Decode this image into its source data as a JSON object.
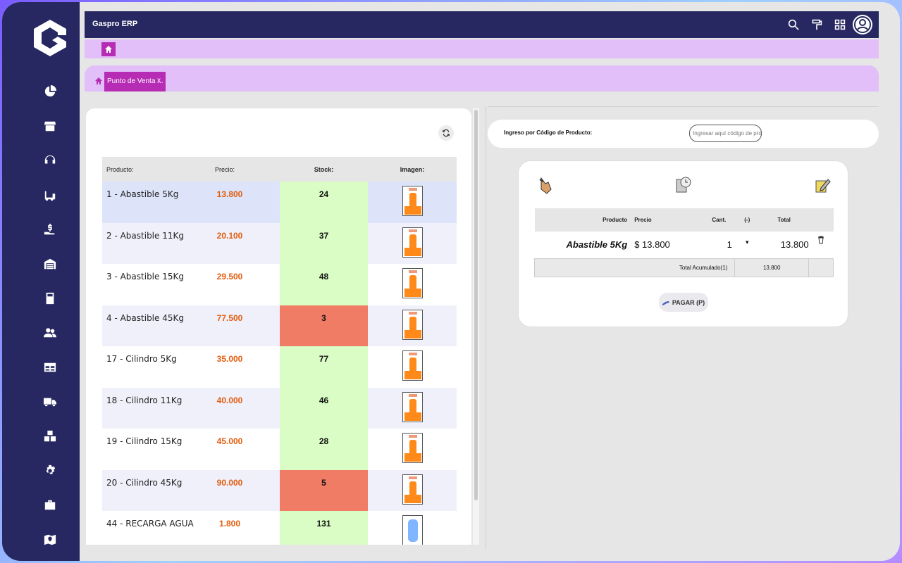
{
  "app": {
    "title": "Gaspro ERP",
    "colors": {
      "navy": "#272861",
      "magenta": "#b62cb4",
      "lilac": "#e2bff8",
      "price": "#e25d0f",
      "stock_ok": "#d9fdc4",
      "stock_low": "#f07c66"
    }
  },
  "sidebar": {
    "icons": [
      "pie-chart-icon",
      "store-icon",
      "headset-icon",
      "forklift-icon",
      "hand-money-icon",
      "warehouse-icon",
      "calculator-icon",
      "users-icon",
      "table-icon",
      "truck-icon",
      "boxes-icon",
      "gear-icon",
      "briefcase-icon",
      "map-icon"
    ]
  },
  "topbar": {
    "icons": [
      "search-icon",
      "paint-roller-icon",
      "grid-icon",
      "user-avatar-icon"
    ]
  },
  "tabs": [
    {
      "label": "Punto de Venta ...",
      "close": "x"
    }
  ],
  "products": {
    "headers": {
      "product": "Producto:",
      "price": "Precio:",
      "stock": "Stock:",
      "image": "Imagen:"
    },
    "rows": [
      {
        "name": "1 - Abastible 5Kg",
        "price": "13.800",
        "stock": "24",
        "status": "ok",
        "image": "gas-cylinder"
      },
      {
        "name": "2 - Abastible 11Kg",
        "price": "20.100",
        "stock": "37",
        "status": "ok",
        "image": "gas-cylinder"
      },
      {
        "name": "3 - Abastible 15Kg",
        "price": "29.500",
        "stock": "48",
        "status": "ok",
        "image": "gas-cylinder"
      },
      {
        "name": "4 - Abastible 45Kg",
        "price": "77.500",
        "stock": "3",
        "status": "low",
        "image": "gas-cylinder"
      },
      {
        "name": "17 - Cilindro 5Kg",
        "price": "35.000",
        "stock": "77",
        "status": "ok",
        "image": "gas-cylinder"
      },
      {
        "name": "18 - Cilindro 11Kg",
        "price": "40.000",
        "stock": "46",
        "status": "ok",
        "image": "gas-cylinder"
      },
      {
        "name": "19 - Cilindro 15Kg",
        "price": "45.000",
        "stock": "28",
        "status": "ok",
        "image": "gas-cylinder"
      },
      {
        "name": "20 - Cilindro 45Kg",
        "price": "90.000",
        "stock": "5",
        "status": "low",
        "image": "gas-cylinder"
      },
      {
        "name": "44 - RECARGA AGUA",
        "price": "1.800",
        "stock": "131",
        "status": "ok",
        "image": "water-jug"
      }
    ]
  },
  "code_entry": {
    "label": "Ingreso por Código de Producto:",
    "placeholder": "Ingresar aquí código de produ"
  },
  "cart": {
    "icons": [
      "hand-point-icon",
      "clock-icon",
      "edit-pencil-icon"
    ],
    "headers": {
      "product": "Producto",
      "price": "Precio",
      "qty": "Cant.",
      "minus": "(-)",
      "total": "Total"
    },
    "items": [
      {
        "product": "Abastible 5Kg",
        "price": "$ 13.800",
        "qty": "1",
        "minus": "▾",
        "total": "13.800"
      }
    ],
    "total_label": "Total Acumulado(1)",
    "total_value": "13.800",
    "pay_label": "PAGAR (P)"
  }
}
